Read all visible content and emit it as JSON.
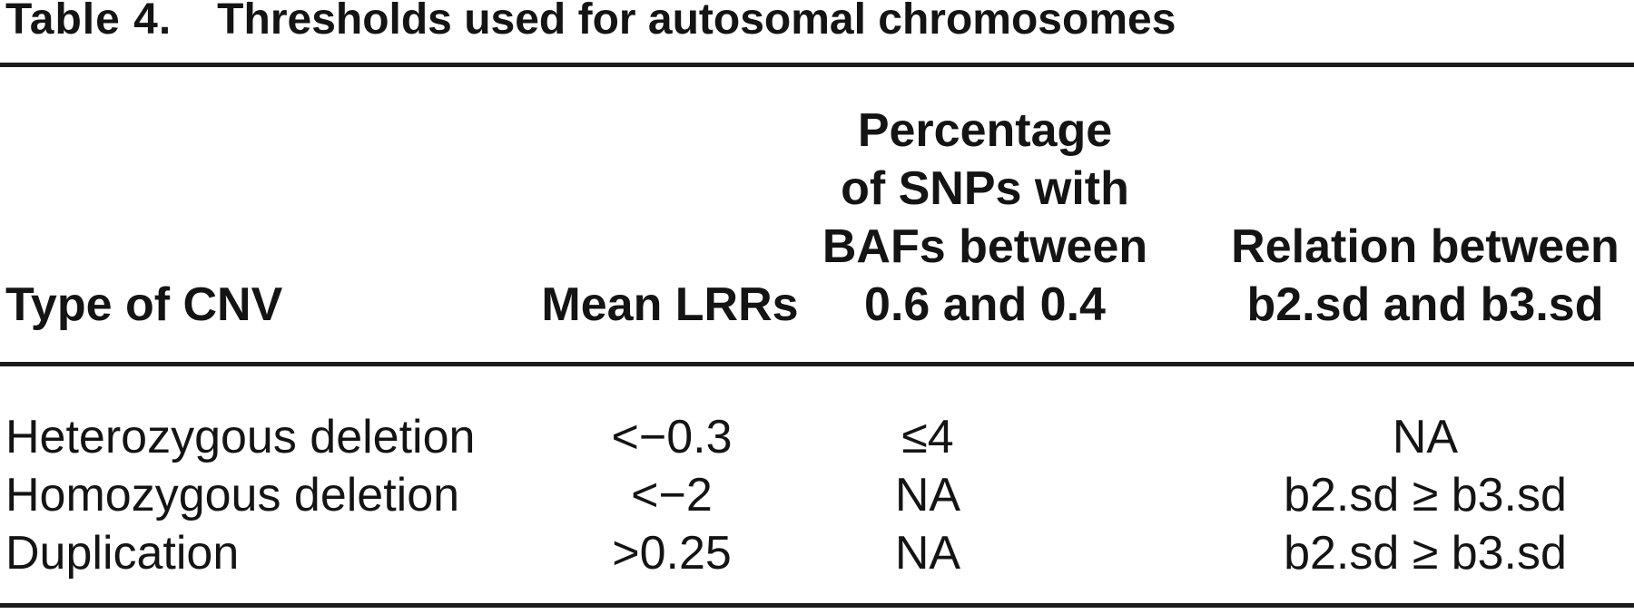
{
  "table": {
    "label": "Table 4.",
    "caption": "Thresholds used for autosomal chromosomes",
    "columns": {
      "type": {
        "header": "Type of CNV"
      },
      "mean_lrr": {
        "header": "Mean LRRs"
      },
      "baf_pct": {
        "header_lines": [
          "Percentage",
          "of SNPs with",
          "BAFs between",
          "0.6 and 0.4"
        ]
      },
      "relation": {
        "header_lines": [
          "Relation between",
          "b2.sd and b3.sd"
        ]
      }
    },
    "rows": [
      {
        "type": "Heterozygous deletion",
        "mean_lrr": "<−0.3",
        "baf_pct": "≤4",
        "relation": "NA"
      },
      {
        "type": "Homozygous deletion",
        "mean_lrr": "<−2",
        "baf_pct": "NA",
        "relation": "b2.sd ≥ b3.sd"
      },
      {
        "type": "Duplication",
        "mean_lrr": ">0.25",
        "baf_pct": "NA",
        "relation": "b2.sd ≥ b3.sd"
      }
    ]
  },
  "colors": {
    "background": "#ffffff",
    "text": "#141414",
    "rule": "#1b1b1b"
  }
}
